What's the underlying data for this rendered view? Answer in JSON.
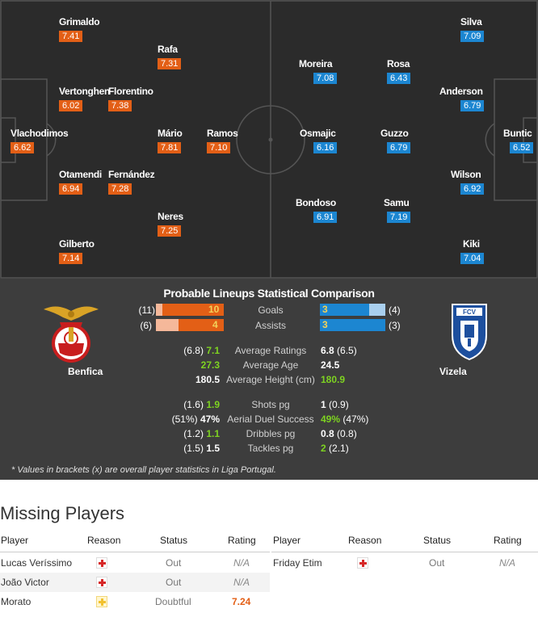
{
  "home_players": [
    {
      "name": "Grimaldo",
      "rating": "7.41"
    },
    {
      "name": "Rafa",
      "rating": "7.31"
    },
    {
      "name": "Vertonghen",
      "rating": "6.02"
    },
    {
      "name": "Florentino",
      "rating": "7.38"
    },
    {
      "name": "Vlachodimos",
      "rating": "6.62"
    },
    {
      "name": "Mário",
      "rating": "7.81"
    },
    {
      "name": "Ramos",
      "rating": "7.10"
    },
    {
      "name": "Otamendi",
      "rating": "6.94"
    },
    {
      "name": "Fernández",
      "rating": "7.28"
    },
    {
      "name": "Neres",
      "rating": "7.25"
    },
    {
      "name": "Gilberto",
      "rating": "7.14"
    }
  ],
  "away_players": [
    {
      "name": "Silva",
      "rating": "7.09"
    },
    {
      "name": "Moreira",
      "rating": "7.08"
    },
    {
      "name": "Rosa",
      "rating": "6.43"
    },
    {
      "name": "Anderson",
      "rating": "6.79"
    },
    {
      "name": "Osmajic",
      "rating": "6.16"
    },
    {
      "name": "Guzzo",
      "rating": "6.79"
    },
    {
      "name": "Buntic",
      "rating": "6.52"
    },
    {
      "name": "Wilson",
      "rating": "6.92"
    },
    {
      "name": "Bondoso",
      "rating": "6.91"
    },
    {
      "name": "Samu",
      "rating": "7.19"
    },
    {
      "name": "Kiki",
      "rating": "7.04"
    }
  ],
  "stats": {
    "title": "Probable Lineups Statistical Comparison",
    "home_team": "Benfica",
    "away_team": "Vizela",
    "goals": {
      "label": "Goals",
      "home": "10",
      "home_overall": "(11)",
      "away": "3",
      "away_overall": "(4)",
      "home_frac": 0.91,
      "away_frac": 0.75
    },
    "assists": {
      "label": "Assists",
      "home": "4",
      "home_overall": "(6)",
      "away": "3",
      "away_overall": "(3)",
      "home_frac": 0.67,
      "away_frac": 1.0
    },
    "rows": [
      {
        "label": "Average Ratings",
        "home_overall": "(6.8)",
        "home": "7.1",
        "away": "6.8",
        "away_overall": "(6.5)"
      },
      {
        "label": "Average Age",
        "home_overall": "",
        "home": "27.3",
        "away": "24.5",
        "away_overall": ""
      },
      {
        "label": "Average Height (cm)",
        "home_overall": "",
        "home": "180.5",
        "away": "180.9",
        "away_overall": ""
      },
      {
        "label": "Shots pg",
        "home_overall": "(1.6)",
        "home": "1.9",
        "away": "1",
        "away_overall": "(0.9)"
      },
      {
        "label": "Aerial Duel Success",
        "home_overall": "(51%)",
        "home": "47%",
        "away": "49%",
        "away_overall": "(47%)"
      },
      {
        "label": "Dribbles pg",
        "home_overall": "(1.2)",
        "home": "1.1",
        "away": "0.8",
        "away_overall": "(0.8)"
      },
      {
        "label": "Tackles pg",
        "home_overall": "(1.5)",
        "home": "1.5",
        "away": "2",
        "away_overall": "(2.1)"
      }
    ],
    "note": "* Values in brackets (x) are overall player statistics in Liga Portugal."
  },
  "missing": {
    "title": "Missing Players",
    "headers": {
      "player": "Player",
      "reason": "Reason",
      "status": "Status",
      "rating": "Rating"
    },
    "home": [
      {
        "player": "Lucas Veríssimo",
        "reason": "injury-icon",
        "status": "Out",
        "rating": "N/A"
      },
      {
        "player": "João Victor",
        "reason": "injury-icon",
        "status": "Out",
        "rating": "N/A"
      },
      {
        "player": "Morato",
        "reason": "doubtful-icon",
        "status": "Doubtful",
        "rating": "7.24"
      }
    ],
    "away": [
      {
        "player": "Friday Etim",
        "reason": "injury-icon",
        "status": "Out",
        "rating": "N/A"
      }
    ]
  },
  "colors": {
    "home": "#e35f16",
    "away": "#1c86d1",
    "better": "#7ed321",
    "pitch": "#2b2b2b",
    "stats_bg": "#3d3d3d"
  }
}
